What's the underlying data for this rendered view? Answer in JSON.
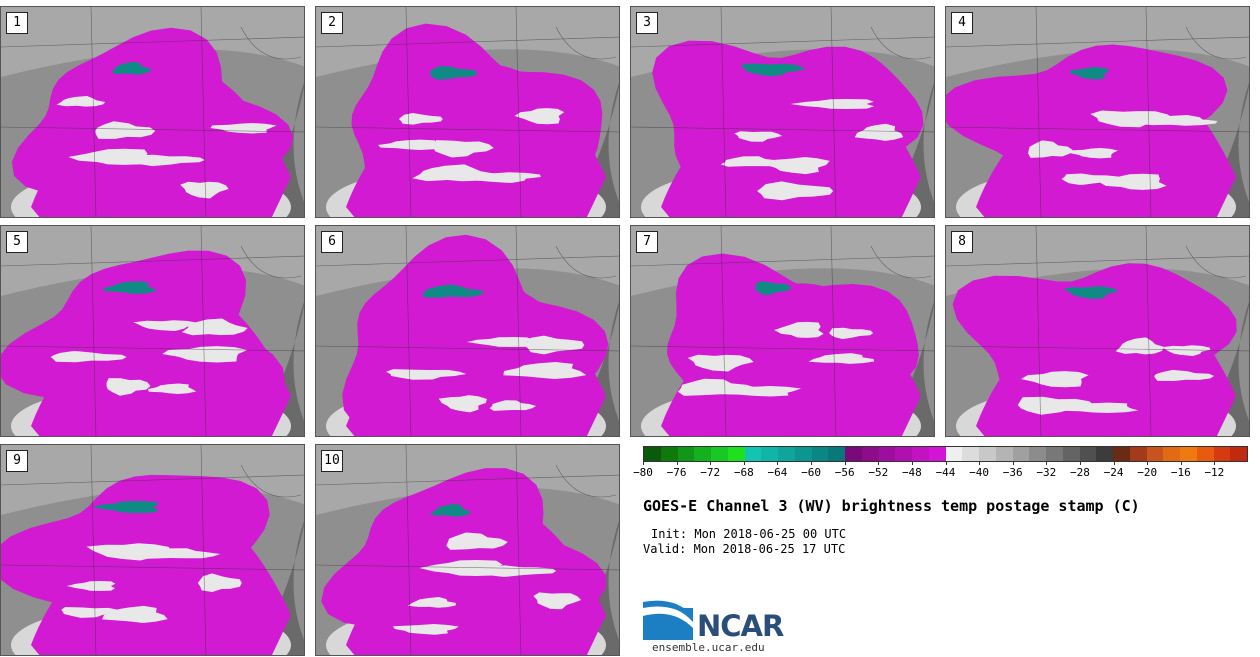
{
  "panels": [
    {
      "label": "1"
    },
    {
      "label": "2"
    },
    {
      "label": "3"
    },
    {
      "label": "4"
    },
    {
      "label": "5"
    },
    {
      "label": "6"
    },
    {
      "label": "7"
    },
    {
      "label": "8"
    },
    {
      "label": "9"
    },
    {
      "label": "10"
    }
  ],
  "colorbar": {
    "colors": [
      "#0b5a0b",
      "#0e7a0e",
      "#12961a",
      "#14b01e",
      "#18c926",
      "#1fe01f",
      "#12c4b4",
      "#10b4a8",
      "#0ea59c",
      "#0c9690",
      "#0a8784",
      "#087878",
      "#7a0a7a",
      "#8c0c8c",
      "#9e0e9e",
      "#b010b0",
      "#c212c2",
      "#d414d4",
      "#efefef",
      "#dcdcdc",
      "#c8c8c8",
      "#b4b4b4",
      "#a0a0a0",
      "#8c8c8c",
      "#787878",
      "#646464",
      "#505050",
      "#3c3c3c",
      "#6b2a14",
      "#a33a1a",
      "#c9531e",
      "#e06b14",
      "#f07a12",
      "#e85a10",
      "#d63a10",
      "#c22a10"
    ],
    "ticks": [
      "−80",
      "−76",
      "−72",
      "−68",
      "−64",
      "−60",
      "−56",
      "−52",
      "−48",
      "−44",
      "−40",
      "−36",
      "−32",
      "−28",
      "−24",
      "−20",
      "−16",
      "−12"
    ]
  },
  "title": "GOES-E Channel 3 (WV) brightness temp postage stamp (C)",
  "init": "Init: Mon 2018-06-25 00 UTC",
  "valid": "Valid: Mon 2018-06-25 17 UTC",
  "logo": {
    "text": "NCAR",
    "site": "ensemble.ucar.edu"
  },
  "colors": {
    "magenta": "#d21ad2",
    "teal": "#0f8a84",
    "bg_gray": "#8a8a8a"
  }
}
